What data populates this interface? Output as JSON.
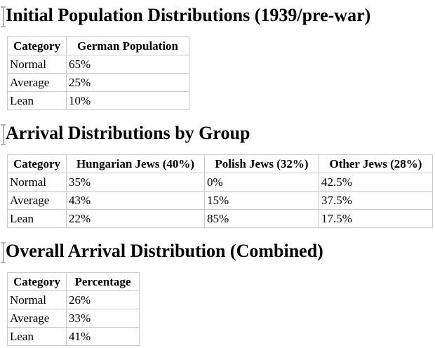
{
  "page": {
    "background": "#ffffff",
    "text_color": "#000000",
    "table_border_color": "#c9c9c9",
    "bookmark_marker_color": "#b4b4b4"
  },
  "sections": [
    {
      "heading": "Initial Population Distributions (1939/pre-war)",
      "table": {
        "columns": [
          "Category",
          "German Population"
        ],
        "rows": [
          [
            "Normal",
            "65%"
          ],
          [
            "Average",
            "25%"
          ],
          [
            "Lean",
            "10%"
          ]
        ]
      }
    },
    {
      "heading": "Arrival Distributions by Group",
      "table": {
        "columns": [
          "Category",
          "Hungarian Jews (40%)",
          "Polish Jews (32%)",
          "Other Jews (28%)"
        ],
        "rows": [
          [
            "Normal",
            "35%",
            "0%",
            "42.5%"
          ],
          [
            "Average",
            "43%",
            "15%",
            "37.5%"
          ],
          [
            "Lean",
            "22%",
            "85%",
            "17.5%"
          ]
        ]
      }
    },
    {
      "heading": "Overall Arrival Distribution (Combined)",
      "table": {
        "columns": [
          "Category",
          "Percentage"
        ],
        "rows": [
          [
            "Normal",
            "26%"
          ],
          [
            "Average",
            "33%"
          ],
          [
            "Lean",
            "41%"
          ]
        ]
      }
    }
  ]
}
